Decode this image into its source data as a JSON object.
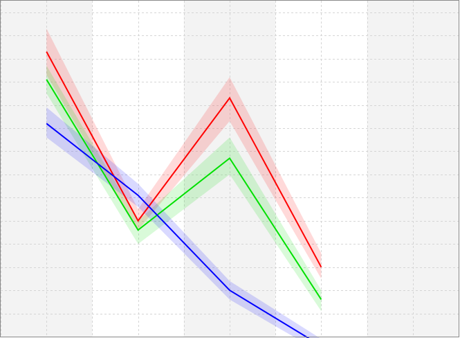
{
  "chart_data": {
    "type": "line",
    "title": "",
    "xlabel": "",
    "ylabel": "",
    "x": [
      1,
      2,
      3,
      4,
      5
    ],
    "xlim": [
      0.5,
      5.5
    ],
    "ylim": [
      0,
      14.5
    ],
    "grid": true,
    "alternating_column_bands": true,
    "colors": {
      "background": "#ffffff",
      "band": "#f3f3f3",
      "grid": "#d5d5d5",
      "frame": "#8a8a8a"
    },
    "series": [
      {
        "color": "#ff0000",
        "values": [
          12.3,
          5.0,
          10.3,
          3.0,
          null
        ],
        "lower": [
          11.3,
          4.6,
          9.3,
          2.5,
          null
        ],
        "upper": [
          13.3,
          5.5,
          11.2,
          3.6,
          null
        ]
      },
      {
        "color": "#00e000",
        "values": [
          11.1,
          4.6,
          7.7,
          1.6,
          null
        ],
        "lower": [
          10.5,
          4.0,
          7.0,
          1.1,
          null
        ],
        "upper": [
          11.7,
          5.0,
          8.6,
          2.0,
          null
        ]
      },
      {
        "color": "#0000ff",
        "values": [
          9.2,
          6.1,
          2.0,
          -0.4,
          null
        ],
        "lower": [
          8.6,
          5.6,
          1.6,
          -0.7,
          null
        ],
        "upper": [
          9.9,
          6.6,
          2.4,
          -0.1,
          null
        ]
      }
    ]
  }
}
